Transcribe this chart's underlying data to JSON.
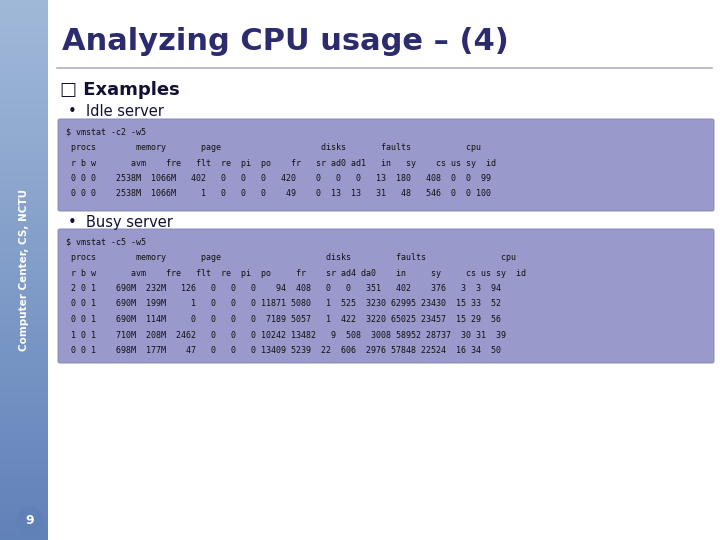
{
  "title": "Analyzing CPU usage – (4)",
  "title_color": "#2B2B6E",
  "bg_color": "#FFFFFF",
  "examples_label": "□ Examples",
  "bullet1": "•  Idle server",
  "bullet2": "•  Busy server",
  "box_color": "#9999CC",
  "box_edge_color": "#8888BB",
  "idle_lines": [
    "$ vmstat -c2 -w5",
    " procs        memory       page                    disks       faults           cpu",
    " r b w       avm    fre   flt  re  pi  po    fr   sr ad0 ad1   in   sy    cs us sy  id",
    " 0 0 0    2538M  1066M   402   0   0   0   420    0   0   0   13  180   408  0  0  99",
    " 0 0 0    2538M  1066M     1   0   0   0    49    0  13  13   31   48   546  0  0 100"
  ],
  "busy_lines": [
    "$ vmstat -c5 -w5",
    " procs        memory       page                     disks         faults               cpu",
    " r b w       avm    fre   flt  re  pi  po     fr    sr ad4 da0    in     sy     cs us sy  id",
    " 2 0 1    690M  232M   126   0   0   0    94  408   0   0   351   402    376   3  3  94",
    " 0 0 1    690M  199M     1   0   0   0 11871 5080   1  525  3230 62995 23430  15 33  52",
    " 0 0 1    690M  114M     0   0   0   0  7189 5057   1  422  3220 65025 23457  15 29  56",
    " 1 0 1    710M  208M  2462   0   0   0 10242 13482   9  508  3008 58952 28737  30 31  39",
    " 0 0 1    698M  177M    47   0   0   0 13409 5239  22  606  2976 57848 22524  16 34  50"
  ],
  "page_num": "9",
  "sidebar_text": "Computer Center, CS, NCTU",
  "sidebar_top_color": "#A0B8D8",
  "sidebar_mid_color": "#7090C0",
  "sidebar_bot_color": "#8090C8",
  "text_color": "#111111",
  "header_line_color": "#B0B0C8"
}
